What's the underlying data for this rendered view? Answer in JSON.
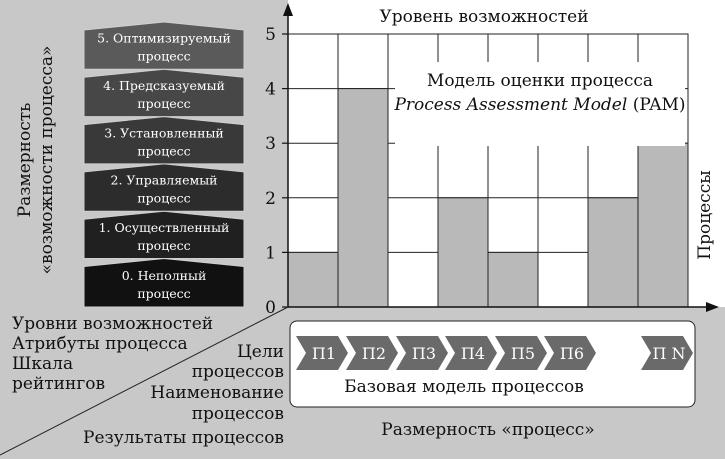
{
  "title_top": "Уровень возможностей",
  "axis_left_label_1": "Размерность",
  "axis_left_label_2": "«возможности процесса»",
  "axis_right_label": "Процессы",
  "axis_bottom_label": "Размерность «процесс»",
  "pam_title_line1": "Модель оценки процесса",
  "pam_title_line2_italic": "Process Assessment Model",
  "pam_title_line2_suffix": " (PAM)",
  "capability_levels": [
    {
      "line1": "5. Оптимизируемый",
      "line2": "процесс"
    },
    {
      "line1": "4. Предсказуемый",
      "line2": "процесс"
    },
    {
      "line1": "3. Установленный",
      "line2": "процесс"
    },
    {
      "line1": "2. Управляемый",
      "line2": "процесс"
    },
    {
      "line1": "1. Осуществленный",
      "line2": "процесс"
    },
    {
      "line1": "0. Неполный",
      "line2": "процесс"
    }
  ],
  "lower_left_text": [
    "Уровни возможностей",
    "Атрибуты процесса",
    "Шкала",
    "рейтингов"
  ],
  "lower_mid_text": [
    "Цели",
    "процессов",
    "Наименование",
    "процессов",
    "Результаты процессов"
  ],
  "base_model_label": "Базовая модель процессов",
  "processes": [
    "П1",
    "П2",
    "П3",
    "П4",
    "П5",
    "П6",
    "П N"
  ],
  "chart_data": {
    "type": "bar",
    "categories": [
      "П1",
      "П2",
      "П3",
      "П4",
      "П5",
      "П6",
      "",
      "П N"
    ],
    "values": [
      1,
      4,
      0,
      2,
      1,
      0,
      2,
      3
    ],
    "ylim": [
      0,
      5
    ],
    "yticks": [
      "0",
      "1",
      "2",
      "3",
      "4",
      "5"
    ],
    "grid": true
  },
  "colors": {
    "panel_gray": "#c8c8c8",
    "bar_gray": "#b9b9b9",
    "level_dark": "#141414",
    "level_light": "#5e5e5e",
    "chevron": "#6a6a6a"
  }
}
